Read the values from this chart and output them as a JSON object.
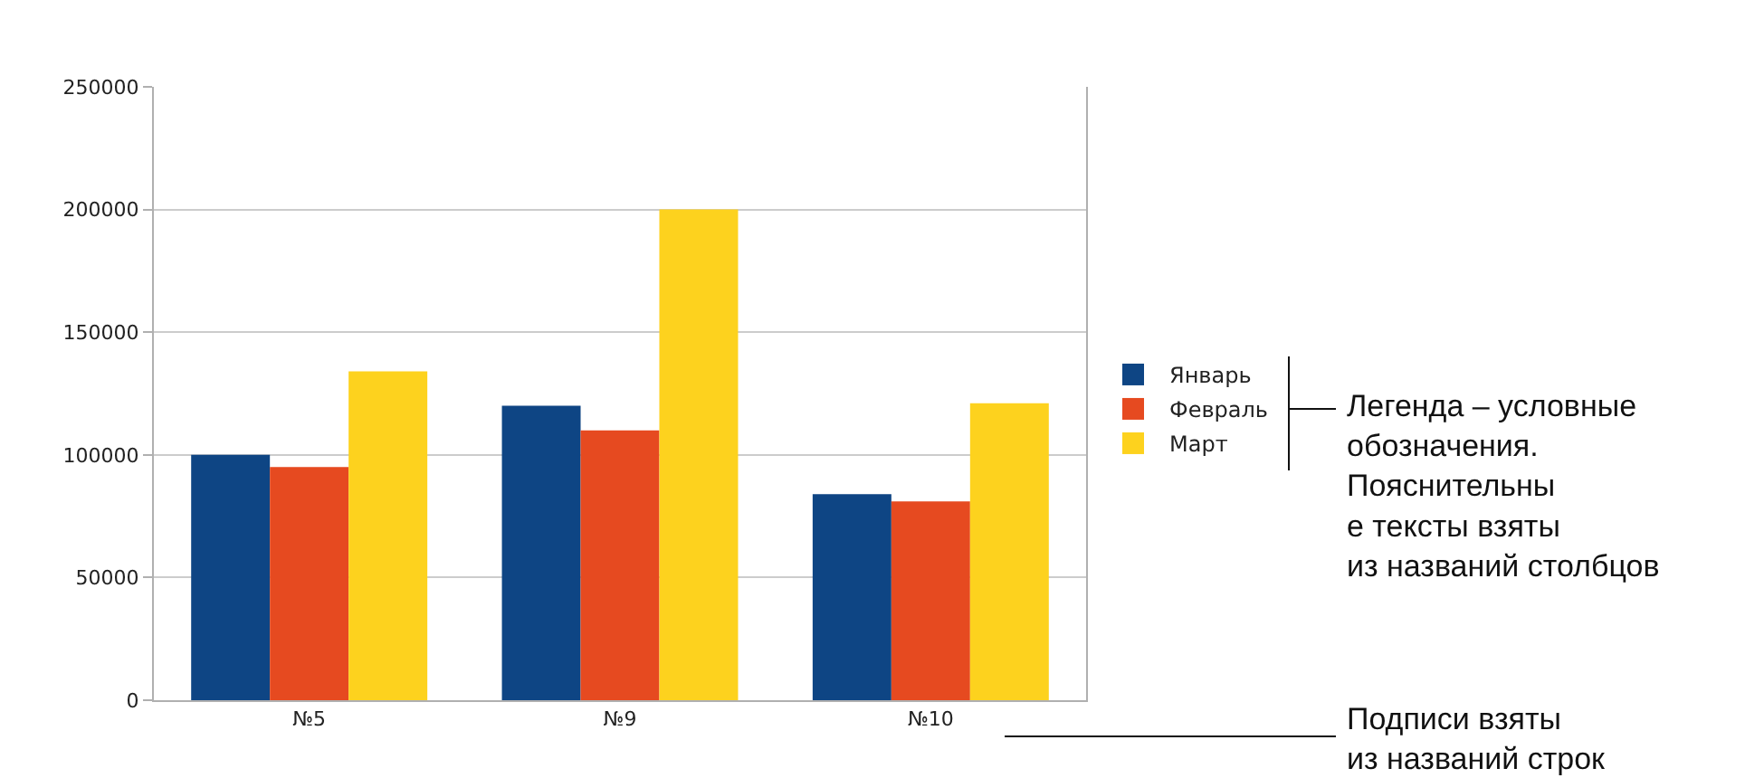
{
  "chart_data": {
    "type": "bar",
    "categories": [
      "№5",
      "№9",
      "№10"
    ],
    "series": [
      {
        "name": "Январь",
        "color": "#0e4584",
        "values": [
          100000,
          120000,
          84000
        ]
      },
      {
        "name": "Февраль",
        "color": "#e64a20",
        "values": [
          95000,
          110000,
          81000
        ]
      },
      {
        "name": "Март",
        "color": "#fdd21e",
        "values": [
          134000,
          200000,
          121000
        ]
      }
    ],
    "ylim": [
      0,
      250000
    ],
    "yticks": [
      0,
      50000,
      100000,
      150000,
      200000,
      250000
    ],
    "grid": "y",
    "legend": "right",
    "annotations": [
      "Легенда – условные\nобозначения.\nПояснительны\nе тексты взяты\nиз названий столбцов",
      "Подписи взяты\nиз названий строк"
    ]
  }
}
